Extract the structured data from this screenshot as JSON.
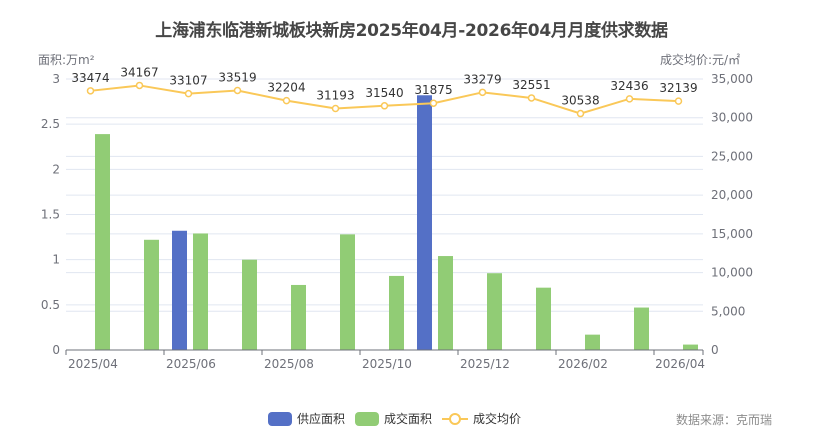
{
  "header": {
    "title": "上海浦东临港新城板块新房2025年04月-2026年04月月度供求数据",
    "left_axis_name": "面积:万m²",
    "right_axis_name": "成交均价:元/㎡"
  },
  "legend": {
    "items": [
      {
        "label": "供应面积",
        "color": "#5470c6",
        "type": "bar"
      },
      {
        "label": "成交面积",
        "color": "#91cc75",
        "type": "bar"
      },
      {
        "label": "成交均价",
        "color": "#fac858",
        "type": "line"
      }
    ]
  },
  "source": "数据来源：克而瑞",
  "chart_data": {
    "type": "bar",
    "title": "上海浦东临港新城板块新房2025年04月-2026年04月月度供求数据",
    "categories": [
      "2025/04",
      "2025/05",
      "2025/06",
      "2025/07",
      "2025/08",
      "2025/09",
      "2025/10",
      "2025/11",
      "2025/12",
      "2026/01",
      "2026/02",
      "2026/03",
      "2026/04"
    ],
    "x_tick_labels": [
      "2025/04",
      "2025/06",
      "2025/08",
      "2025/10",
      "2025/12",
      "2026/02",
      "2026/04"
    ],
    "series": [
      {
        "name": "供应面积",
        "type": "bar",
        "axis": "left",
        "color": "#5470c6",
        "values": [
          0,
          0,
          1.32,
          0,
          0,
          0,
          0,
          2.82,
          0,
          0,
          0,
          0,
          0
        ]
      },
      {
        "name": "成交面积",
        "type": "bar",
        "axis": "left",
        "color": "#91cc75",
        "values": [
          2.39,
          1.22,
          1.29,
          1.0,
          0.72,
          1.28,
          0.82,
          1.04,
          0.85,
          0.69,
          0.17,
          0.47,
          0.06
        ]
      },
      {
        "name": "成交均价",
        "type": "line",
        "axis": "right",
        "color": "#fac858",
        "values": [
          33474,
          34167,
          33107,
          33519,
          32204,
          31193,
          31540,
          31875,
          33279,
          32551,
          30538,
          32436,
          32139
        ],
        "labels_shown": true
      }
    ],
    "xlabel": "",
    "ylabel_left": "面积:万m²",
    "ylabel_right": "成交均价:元/㎡",
    "ylim_left": [
      0,
      3
    ],
    "yticks_left": [
      "0",
      "0.5",
      "1",
      "1.5",
      "2",
      "2.5",
      "3"
    ],
    "ylim_right": [
      0,
      35000
    ],
    "yticks_right": [
      "0",
      "5,000",
      "10,000",
      "15,000",
      "20,000",
      "25,000",
      "30,000",
      "35,000"
    ],
    "grid": true,
    "legend_position": "bottom"
  }
}
